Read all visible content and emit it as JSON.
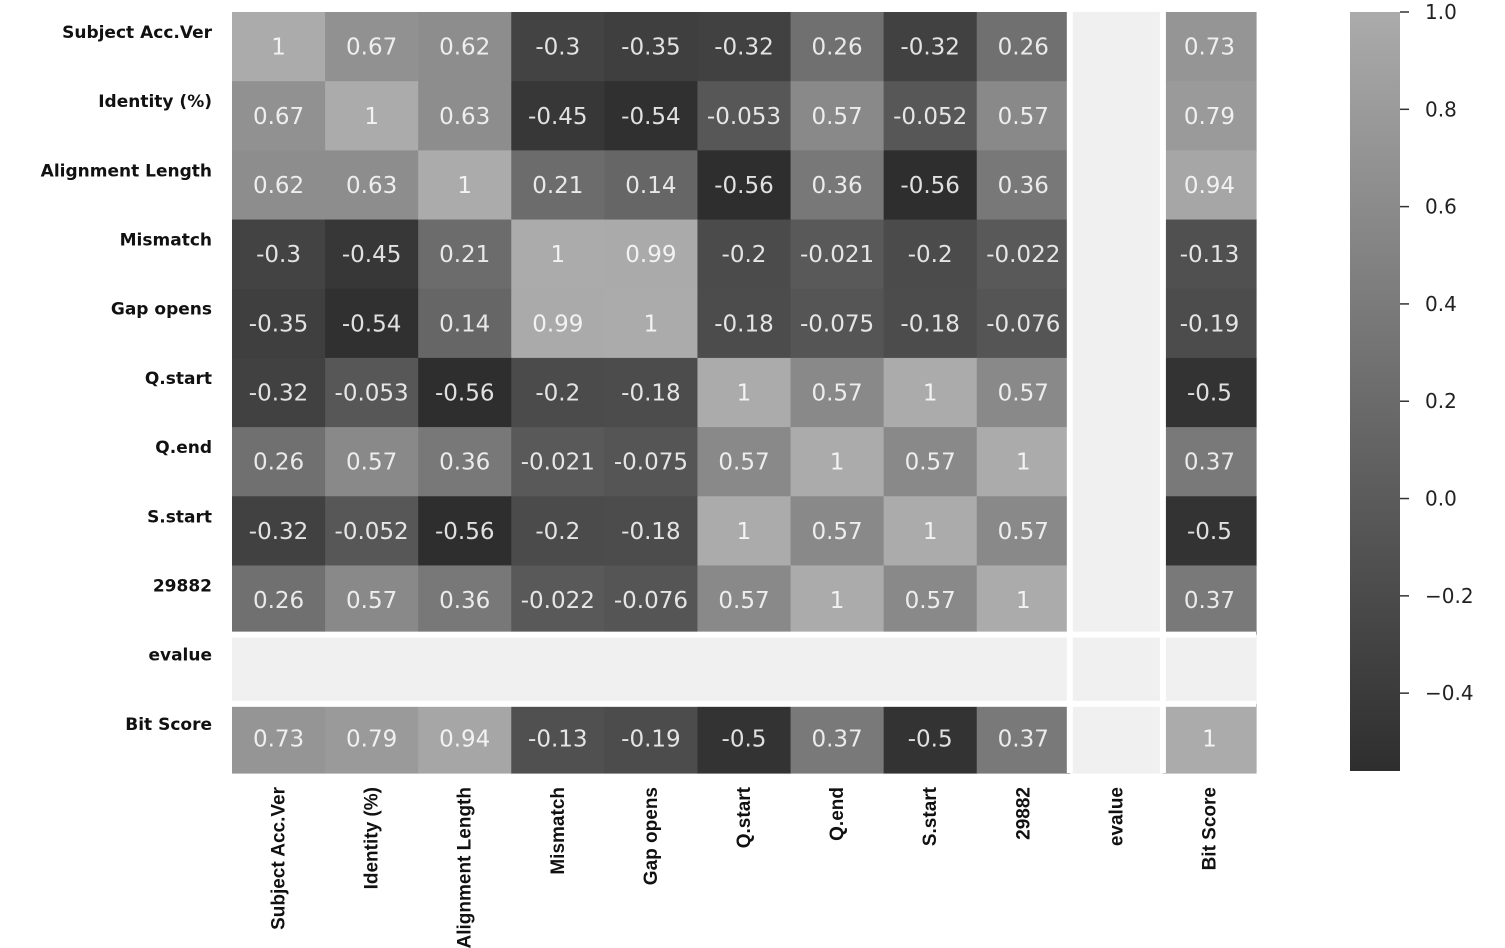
{
  "chart_data": {
    "type": "heatmap",
    "title": "",
    "colormap": "grayscale",
    "labels": [
      "Subject Acc.Ver",
      "Identity (%)",
      "Alignment Length",
      "Mismatch",
      "Gap opens",
      "Q.start",
      "Q.end",
      "S.start",
      "29882",
      "evalue",
      "Bit Score"
    ],
    "values": [
      [
        1,
        0.67,
        0.62,
        -0.3,
        -0.35,
        -0.32,
        0.26,
        -0.32,
        0.26,
        null,
        0.73
      ],
      [
        0.67,
        1,
        0.63,
        -0.45,
        -0.54,
        -0.053,
        0.57,
        -0.052,
        0.57,
        null,
        0.79
      ],
      [
        0.62,
        0.63,
        1,
        0.21,
        0.14,
        -0.56,
        0.36,
        -0.56,
        0.36,
        null,
        0.94
      ],
      [
        -0.3,
        -0.45,
        0.21,
        1,
        0.99,
        -0.2,
        -0.021,
        -0.2,
        -0.022,
        null,
        -0.13
      ],
      [
        -0.35,
        -0.54,
        0.14,
        0.99,
        1,
        -0.18,
        -0.075,
        -0.18,
        -0.076,
        null,
        -0.19
      ],
      [
        -0.32,
        -0.053,
        -0.56,
        -0.2,
        -0.18,
        1,
        0.57,
        1,
        0.57,
        null,
        -0.5
      ],
      [
        0.26,
        0.57,
        0.36,
        -0.021,
        -0.075,
        0.57,
        1,
        0.57,
        1,
        null,
        0.37
      ],
      [
        -0.32,
        -0.052,
        -0.56,
        -0.2,
        -0.18,
        1,
        0.57,
        1,
        0.57,
        null,
        -0.5
      ],
      [
        0.26,
        0.57,
        0.36,
        -0.022,
        -0.076,
        0.57,
        1,
        0.57,
        1,
        null,
        0.37
      ],
      [
        null,
        null,
        null,
        null,
        null,
        null,
        null,
        null,
        null,
        null,
        null
      ],
      [
        0.73,
        0.79,
        0.94,
        -0.13,
        -0.19,
        -0.5,
        0.37,
        -0.5,
        0.37,
        null,
        1
      ]
    ],
    "colorbar": {
      "range": [
        -0.56,
        1.0
      ],
      "ticks": [
        1.0,
        0.8,
        0.6,
        0.4,
        0.2,
        0.0,
        -0.2,
        -0.4
      ],
      "tick_labels": [
        "1.0",
        "0.8",
        "0.6",
        "0.4",
        "0.2",
        "0.0",
        "−0.2",
        "−0.4"
      ]
    },
    "colors": {
      "low": "#2e2e2e",
      "high": "#ababab",
      "missing": "#f0f0f0"
    }
  }
}
